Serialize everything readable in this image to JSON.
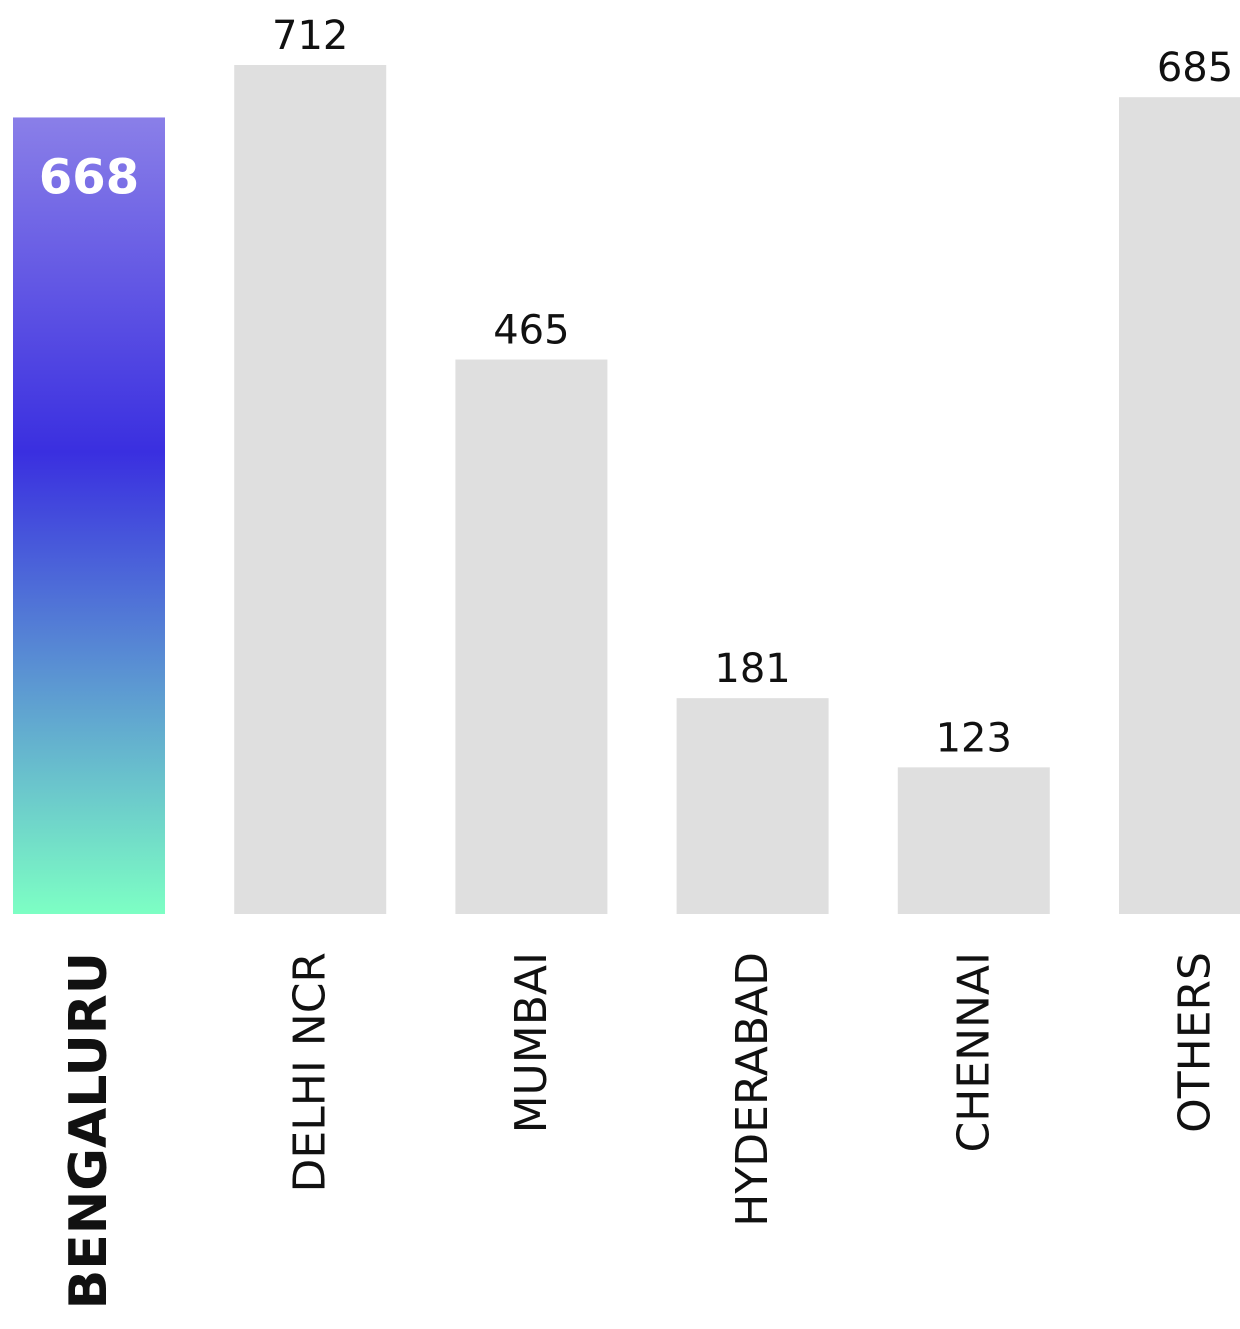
{
  "chart_data": {
    "type": "bar",
    "title": "",
    "xlabel": "",
    "ylabel": "",
    "ylim": [
      0,
      712
    ],
    "grid": false,
    "categories": [
      "BENGALURU",
      "DELHI NCR",
      "MUMBAI",
      "HYDERABAD",
      "CHENNAI",
      "OTHERS"
    ],
    "values": [
      668,
      712,
      465,
      181,
      123,
      685
    ],
    "highlight_index": 0,
    "colors": {
      "bar": "#dfdfdf",
      "highlight_gradient": [
        "#8a7fe8",
        "#3a2fe0",
        "#7dffc4"
      ],
      "text": "#111111",
      "highlight_value_text": "#ffffff"
    }
  }
}
